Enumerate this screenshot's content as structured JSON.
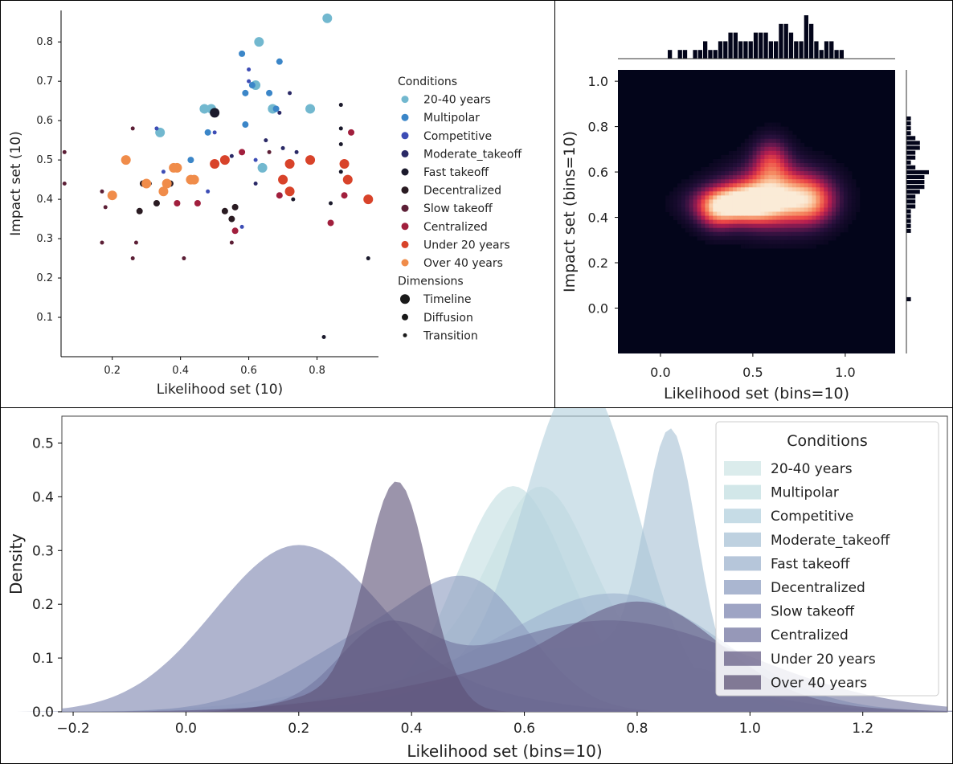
{
  "colors": {
    "conditions": {
      "20-40 years": "#72b8cf",
      "Multipolar": "#3b86c8",
      "Competitive": "#3d4db5",
      "Moderate_takeoff": "#2a2966",
      "Fast takeoff": "#1b1a2c",
      "Decentralized": "#2a1b22",
      "Slow takeoff": "#5c1f36",
      "Centralized": "#a11f3d",
      "Under 20 years": "#d8432a",
      "Over 40 years": "#f08c4a"
    },
    "kde_fills": [
      "#cfe6e6",
      "#c3dfe2",
      "#b3d0dd",
      "#a8c1d5",
      "#9eb3ce",
      "#8e9dc0",
      "#7e86b0",
      "#7376a0",
      "#655d86",
      "#5e5377"
    ]
  },
  "chart_data": [
    {
      "type": "scatter",
      "xlabel": "Likelihood set (10)",
      "ylabel": "Impact set (10)",
      "xlim": [
        0.05,
        0.98
      ],
      "ylim": [
        0.0,
        0.88
      ],
      "xticks": [
        "0.2",
        "0.4",
        "0.6",
        "0.8"
      ],
      "yticks": [
        "0.1",
        "0.2",
        "0.3",
        "0.4",
        "0.5",
        "0.6",
        "0.7",
        "0.8"
      ],
      "legend": {
        "title_conditions": "Conditions",
        "conditions": [
          "20-40 years",
          "Multipolar",
          "Competitive",
          "Moderate_takeoff",
          "Fast takeoff",
          "Decentralized",
          "Slow takeoff",
          "Centralized",
          "Under 20 years",
          "Over 40 years"
        ],
        "title_dimensions": "Dimensions",
        "dimensions": [
          "Timeline",
          "Diffusion",
          "Transition"
        ],
        "placement": "right"
      },
      "points": [
        {
          "x": 0.83,
          "y": 0.86,
          "c": "20-40 years",
          "s": "Timeline"
        },
        {
          "x": 0.63,
          "y": 0.8,
          "c": "20-40 years",
          "s": "Timeline"
        },
        {
          "x": 0.62,
          "y": 0.69,
          "c": "20-40 years",
          "s": "Timeline"
        },
        {
          "x": 0.67,
          "y": 0.63,
          "c": "20-40 years",
          "s": "Timeline"
        },
        {
          "x": 0.78,
          "y": 0.63,
          "c": "20-40 years",
          "s": "Timeline"
        },
        {
          "x": 0.47,
          "y": 0.63,
          "c": "20-40 years",
          "s": "Timeline"
        },
        {
          "x": 0.49,
          "y": 0.63,
          "c": "20-40 years",
          "s": "Timeline"
        },
        {
          "x": 0.34,
          "y": 0.57,
          "c": "20-40 years",
          "s": "Timeline"
        },
        {
          "x": 0.64,
          "y": 0.48,
          "c": "20-40 years",
          "s": "Timeline"
        },
        {
          "x": 0.58,
          "y": 0.77,
          "c": "Multipolar",
          "s": "Diffusion"
        },
        {
          "x": 0.69,
          "y": 0.75,
          "c": "Multipolar",
          "s": "Diffusion"
        },
        {
          "x": 0.61,
          "y": 0.69,
          "c": "Multipolar",
          "s": "Diffusion"
        },
        {
          "x": 0.59,
          "y": 0.67,
          "c": "Multipolar",
          "s": "Diffusion"
        },
        {
          "x": 0.66,
          "y": 0.67,
          "c": "Multipolar",
          "s": "Diffusion"
        },
        {
          "x": 0.68,
          "y": 0.63,
          "c": "Multipolar",
          "s": "Diffusion"
        },
        {
          "x": 0.59,
          "y": 0.59,
          "c": "Multipolar",
          "s": "Diffusion"
        },
        {
          "x": 0.48,
          "y": 0.57,
          "c": "Multipolar",
          "s": "Diffusion"
        },
        {
          "x": 0.43,
          "y": 0.5,
          "c": "Multipolar",
          "s": "Diffusion"
        },
        {
          "x": 0.6,
          "y": 0.73,
          "c": "Competitive",
          "s": "Transition"
        },
        {
          "x": 0.6,
          "y": 0.7,
          "c": "Competitive",
          "s": "Transition"
        },
        {
          "x": 0.33,
          "y": 0.58,
          "c": "Competitive",
          "s": "Transition"
        },
        {
          "x": 0.5,
          "y": 0.57,
          "c": "Competitive",
          "s": "Transition"
        },
        {
          "x": 0.62,
          "y": 0.5,
          "c": "Competitive",
          "s": "Transition"
        },
        {
          "x": 0.35,
          "y": 0.47,
          "c": "Competitive",
          "s": "Transition"
        },
        {
          "x": 0.48,
          "y": 0.42,
          "c": "Competitive",
          "s": "Transition"
        },
        {
          "x": 0.58,
          "y": 0.33,
          "c": "Competitive",
          "s": "Transition"
        },
        {
          "x": 0.72,
          "y": 0.67,
          "c": "Moderate_takeoff",
          "s": "Transition"
        },
        {
          "x": 0.69,
          "y": 0.62,
          "c": "Moderate_takeoff",
          "s": "Transition"
        },
        {
          "x": 0.65,
          "y": 0.55,
          "c": "Moderate_takeoff",
          "s": "Transition"
        },
        {
          "x": 0.7,
          "y": 0.53,
          "c": "Moderate_takeoff",
          "s": "Transition"
        },
        {
          "x": 0.74,
          "y": 0.52,
          "c": "Moderate_takeoff",
          "s": "Transition"
        },
        {
          "x": 0.62,
          "y": 0.44,
          "c": "Moderate_takeoff",
          "s": "Transition"
        },
        {
          "x": 0.55,
          "y": 0.51,
          "c": "Moderate_takeoff",
          "s": "Transition"
        },
        {
          "x": 0.5,
          "y": 0.62,
          "c": "Fast takeoff",
          "s": "Timeline"
        },
        {
          "x": 0.87,
          "y": 0.64,
          "c": "Fast takeoff",
          "s": "Transition"
        },
        {
          "x": 0.87,
          "y": 0.58,
          "c": "Fast takeoff",
          "s": "Transition"
        },
        {
          "x": 0.87,
          "y": 0.54,
          "c": "Fast takeoff",
          "s": "Transition"
        },
        {
          "x": 0.87,
          "y": 0.47,
          "c": "Fast takeoff",
          "s": "Transition"
        },
        {
          "x": 0.73,
          "y": 0.4,
          "c": "Fast takeoff",
          "s": "Transition"
        },
        {
          "x": 0.84,
          "y": 0.39,
          "c": "Fast takeoff",
          "s": "Transition"
        },
        {
          "x": 0.82,
          "y": 0.05,
          "c": "Fast takeoff",
          "s": "Transition"
        },
        {
          "x": 0.95,
          "y": 0.25,
          "c": "Fast takeoff",
          "s": "Transition"
        },
        {
          "x": 0.29,
          "y": 0.44,
          "c": "Decentralized",
          "s": "Diffusion"
        },
        {
          "x": 0.37,
          "y": 0.44,
          "c": "Decentralized",
          "s": "Diffusion"
        },
        {
          "x": 0.33,
          "y": 0.39,
          "c": "Decentralized",
          "s": "Diffusion"
        },
        {
          "x": 0.28,
          "y": 0.37,
          "c": "Decentralized",
          "s": "Diffusion"
        },
        {
          "x": 0.53,
          "y": 0.37,
          "c": "Decentralized",
          "s": "Diffusion"
        },
        {
          "x": 0.56,
          "y": 0.38,
          "c": "Decentralized",
          "s": "Diffusion"
        },
        {
          "x": 0.55,
          "y": 0.35,
          "c": "Decentralized",
          "s": "Diffusion"
        },
        {
          "x": 0.31,
          "y": 0.44,
          "c": "Decentralized",
          "s": "Transition"
        },
        {
          "x": 0.06,
          "y": 0.52,
          "c": "Slow takeoff",
          "s": "Transition"
        },
        {
          "x": 0.06,
          "y": 0.44,
          "c": "Slow takeoff",
          "s": "Transition"
        },
        {
          "x": 0.17,
          "y": 0.42,
          "c": "Slow takeoff",
          "s": "Transition"
        },
        {
          "x": 0.18,
          "y": 0.38,
          "c": "Slow takeoff",
          "s": "Transition"
        },
        {
          "x": 0.17,
          "y": 0.29,
          "c": "Slow takeoff",
          "s": "Transition"
        },
        {
          "x": 0.26,
          "y": 0.58,
          "c": "Slow takeoff",
          "s": "Transition"
        },
        {
          "x": 0.27,
          "y": 0.29,
          "c": "Slow takeoff",
          "s": "Transition"
        },
        {
          "x": 0.26,
          "y": 0.25,
          "c": "Slow takeoff",
          "s": "Transition"
        },
        {
          "x": 0.41,
          "y": 0.25,
          "c": "Slow takeoff",
          "s": "Transition"
        },
        {
          "x": 0.55,
          "y": 0.29,
          "c": "Slow takeoff",
          "s": "Transition"
        },
        {
          "x": 0.66,
          "y": 0.52,
          "c": "Slow takeoff",
          "s": "Transition"
        },
        {
          "x": 0.58,
          "y": 0.52,
          "c": "Centralized",
          "s": "Diffusion"
        },
        {
          "x": 0.39,
          "y": 0.39,
          "c": "Centralized",
          "s": "Diffusion"
        },
        {
          "x": 0.45,
          "y": 0.39,
          "c": "Centralized",
          "s": "Diffusion"
        },
        {
          "x": 0.56,
          "y": 0.32,
          "c": "Centralized",
          "s": "Diffusion"
        },
        {
          "x": 0.69,
          "y": 0.41,
          "c": "Centralized",
          "s": "Diffusion"
        },
        {
          "x": 0.84,
          "y": 0.34,
          "c": "Centralized",
          "s": "Diffusion"
        },
        {
          "x": 0.9,
          "y": 0.57,
          "c": "Centralized",
          "s": "Diffusion"
        },
        {
          "x": 0.88,
          "y": 0.41,
          "c": "Centralized",
          "s": "Diffusion"
        },
        {
          "x": 0.53,
          "y": 0.5,
          "c": "Under 20 years",
          "s": "Timeline"
        },
        {
          "x": 0.5,
          "y": 0.49,
          "c": "Under 20 years",
          "s": "Timeline"
        },
        {
          "x": 0.72,
          "y": 0.49,
          "c": "Under 20 years",
          "s": "Timeline"
        },
        {
          "x": 0.78,
          "y": 0.5,
          "c": "Under 20 years",
          "s": "Timeline"
        },
        {
          "x": 0.7,
          "y": 0.45,
          "c": "Under 20 years",
          "s": "Timeline"
        },
        {
          "x": 0.72,
          "y": 0.42,
          "c": "Under 20 years",
          "s": "Timeline"
        },
        {
          "x": 0.88,
          "y": 0.49,
          "c": "Under 20 years",
          "s": "Timeline"
        },
        {
          "x": 0.89,
          "y": 0.45,
          "c": "Under 20 years",
          "s": "Timeline"
        },
        {
          "x": 0.95,
          "y": 0.4,
          "c": "Under 20 years",
          "s": "Timeline"
        },
        {
          "x": 0.24,
          "y": 0.5,
          "c": "Over 40 years",
          "s": "Timeline"
        },
        {
          "x": 0.2,
          "y": 0.41,
          "c": "Over 40 years",
          "s": "Timeline"
        },
        {
          "x": 0.3,
          "y": 0.44,
          "c": "Over 40 years",
          "s": "Timeline"
        },
        {
          "x": 0.35,
          "y": 0.42,
          "c": "Over 40 years",
          "s": "Timeline"
        },
        {
          "x": 0.36,
          "y": 0.44,
          "c": "Over 40 years",
          "s": "Timeline"
        },
        {
          "x": 0.38,
          "y": 0.48,
          "c": "Over 40 years",
          "s": "Timeline"
        },
        {
          "x": 0.39,
          "y": 0.48,
          "c": "Over 40 years",
          "s": "Timeline"
        },
        {
          "x": 0.43,
          "y": 0.45,
          "c": "Over 40 years",
          "s": "Timeline"
        },
        {
          "x": 0.44,
          "y": 0.45,
          "c": "Over 40 years",
          "s": "Timeline"
        }
      ]
    },
    {
      "type": "heatmap",
      "xlabel": "Likelihood set (bins=10)",
      "ylabel": "Impact set (bins=10)",
      "xlim": [
        -0.23,
        1.27
      ],
      "ylim": [
        -0.2,
        1.05
      ],
      "xticks": [
        "0.0",
        "0.5",
        "1.0"
      ],
      "yticks": [
        "0.0",
        "0.2",
        "0.4",
        "0.6",
        "0.8",
        "1.0"
      ],
      "marginal_x_counts": [
        1,
        0,
        1,
        1,
        0,
        1,
        1,
        2,
        1,
        1,
        2,
        2,
        3,
        3,
        2,
        2,
        2,
        3,
        3,
        3,
        2,
        2,
        4,
        4,
        3,
        2,
        2,
        5,
        4,
        2,
        1,
        2,
        2,
        1,
        1
      ],
      "marginal_y_counts": [
        1,
        0,
        0,
        0,
        0,
        0,
        0,
        0,
        0,
        0,
        0,
        0,
        0,
        0,
        1,
        1,
        1,
        1,
        1,
        2,
        2,
        2,
        3,
        4,
        4,
        4,
        5,
        2,
        1,
        2,
        2,
        3,
        3,
        2,
        1,
        1,
        1,
        1
      ],
      "kde_blobs": [
        {
          "x": 0.42,
          "y": 0.46,
          "sx": 0.15,
          "sy": 0.055,
          "w": 1.0
        },
        {
          "x": 0.62,
          "y": 0.49,
          "sx": 0.17,
          "sy": 0.09,
          "w": 0.95
        },
        {
          "x": 0.6,
          "y": 0.65,
          "sx": 0.07,
          "sy": 0.07,
          "w": 0.5
        },
        {
          "x": 0.82,
          "y": 0.47,
          "sx": 0.09,
          "sy": 0.07,
          "w": 0.55
        },
        {
          "x": 0.3,
          "y": 0.42,
          "sx": 0.07,
          "sy": 0.06,
          "w": 0.4
        }
      ]
    },
    {
      "type": "area",
      "xlabel": "Likelihood set (bins=10)",
      "ylabel": "Density",
      "xlim": [
        -0.22,
        1.35
      ],
      "ylim": [
        0.0,
        0.55
      ],
      "xticks": [
        "−0.2",
        "0.0",
        "0.2",
        "0.4",
        "0.6",
        "0.8",
        "1.0",
        "1.2"
      ],
      "yticks": [
        "0.0",
        "0.1",
        "0.2",
        "0.3",
        "0.4",
        "0.5"
      ],
      "legend": {
        "title": "Conditions",
        "placement": "top-right"
      },
      "series": [
        {
          "name": "20-40 years",
          "comps": [
            {
              "mu": 0.63,
              "sigma": 0.085,
              "h": 0.3
            },
            {
              "mu": 0.6,
              "sigma": 0.25,
              "h": 0.12
            }
          ]
        },
        {
          "name": "Multipolar",
          "comps": [
            {
              "mu": 0.58,
              "sigma": 0.1,
              "h": 0.42
            },
            {
              "mu": 0.9,
              "sigma": 0.08,
              "h": 0.08
            }
          ]
        },
        {
          "name": "Competitive",
          "comps": [
            {
              "mu": 0.7,
              "sigma": 0.1,
              "h": 0.62
            },
            {
              "mu": 0.4,
              "sigma": 0.14,
              "h": 0.05
            }
          ]
        },
        {
          "name": "Moderate_takeoff",
          "comps": [
            {
              "mu": 0.86,
              "sigma": 0.045,
              "h": 0.44
            },
            {
              "mu": 0.7,
              "sigma": 0.2,
              "h": 0.12
            }
          ]
        },
        {
          "name": "Fast takeoff",
          "comps": [
            {
              "mu": 0.78,
              "sigma": 0.18,
              "h": 0.2
            },
            {
              "mu": 0.5,
              "sigma": 0.2,
              "h": 0.05
            }
          ]
        },
        {
          "name": "Decentralized",
          "comps": [
            {
              "mu": 0.52,
              "sigma": 0.1,
              "h": 0.17
            },
            {
              "mu": 0.35,
              "sigma": 0.15,
              "h": 0.14
            }
          ]
        },
        {
          "name": "Slow takeoff",
          "comps": [
            {
              "mu": 0.2,
              "sigma": 0.15,
              "h": 0.31
            },
            {
              "mu": 0.55,
              "sigma": 0.12,
              "h": 0.02
            }
          ]
        },
        {
          "name": "Centralized",
          "comps": [
            {
              "mu": 0.35,
              "sigma": 0.08,
              "h": 0.12
            },
            {
              "mu": 0.75,
              "sigma": 0.25,
              "h": 0.17
            }
          ]
        },
        {
          "name": "Under 20 years",
          "comps": [
            {
              "mu": 0.82,
              "sigma": 0.13,
              "h": 0.14
            },
            {
              "mu": 0.65,
              "sigma": 0.25,
              "h": 0.08
            }
          ]
        },
        {
          "name": "Over 40 years",
          "comps": [
            {
              "mu": 0.375,
              "sigma": 0.055,
              "h": 0.42
            },
            {
              "mu": 0.25,
              "sigma": 0.08,
              "h": 0.03
            }
          ]
        }
      ]
    }
  ]
}
